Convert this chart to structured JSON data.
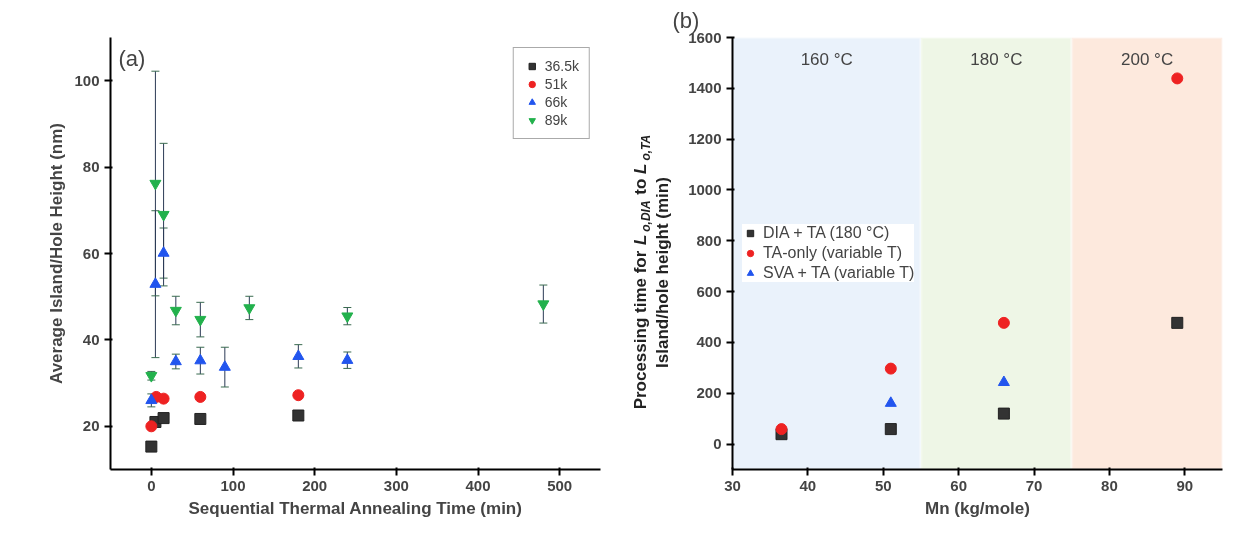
{
  "chart_data": [
    {
      "type": "scatter",
      "annotations": [
        "(a)"
      ],
      "xlabel": "Sequential Thermal Annealing Time (min)",
      "ylabel": "Average Island/Hole Height (nm)",
      "xlim": [
        -50,
        550
      ],
      "xticks": [
        0,
        100,
        200,
        300,
        400,
        500
      ],
      "ylim": [
        10,
        110
      ],
      "yticks": [
        20,
        40,
        60,
        80,
        100
      ],
      "legend": "top right",
      "grid": false,
      "series": [
        {
          "name": "36.5k",
          "color": "#333333",
          "marker": "square",
          "x": [
            0,
            5,
            15,
            60,
            180
          ],
          "values": [
            15.3,
            21,
            21.9,
            21.7,
            22.5
          ]
        },
        {
          "name": "51k",
          "color": "#ee2222",
          "marker": "circle",
          "x": [
            0,
            6,
            15,
            60,
            180
          ],
          "values": [
            20,
            26.8,
            26.4,
            26.8,
            27.2
          ]
        },
        {
          "name": "66k",
          "color": "#2255ee",
          "marker": "triangle",
          "x": [
            0,
            5,
            15,
            30,
            60,
            90,
            180,
            240
          ],
          "values": [
            26,
            52.9,
            60.1,
            35,
            35.2,
            33.7,
            36.2,
            35.3
          ],
          "errors": [
            1.5,
            17,
            5.8,
            1.7,
            3.1,
            4.6,
            2.7,
            1.9
          ]
        },
        {
          "name": "89k",
          "color": "#22b14c",
          "marker": "triangle",
          "x": [
            0,
            5,
            15,
            30,
            60,
            120,
            240,
            480
          ],
          "values": [
            31.7,
            76.2,
            69,
            46.8,
            44.7,
            47.4,
            45.5,
            48.3
          ],
          "errors": [
            1,
            26,
            16.5,
            3.3,
            4,
            2.7,
            2,
            4.4
          ]
        }
      ]
    },
    {
      "type": "scatter",
      "annotations": [
        "(b)"
      ],
      "xlabel": "Mn (kg/mole)",
      "ylabel": "Processing time for L$_{o,DIA}$ to L$_{o,TA}$\nIsland/hole height (min)",
      "xlim": [
        30,
        95
      ],
      "xticks": [
        30,
        40,
        50,
        60,
        70,
        80,
        90
      ],
      "ylim": [
        -100,
        1600
      ],
      "yticks": [
        0,
        200,
        400,
        600,
        800,
        1000,
        1200,
        1400,
        1600
      ],
      "legend": "left",
      "grid": false,
      "bands": [
        {
          "axis": "x",
          "from": 30,
          "to": 55,
          "label": "160 °C",
          "color": "#eaf2fb"
        },
        {
          "axis": "x",
          "from": 55,
          "to": 75,
          "label": "180 °C",
          "color": "#eef6e6"
        },
        {
          "axis": "x",
          "from": 75,
          "to": 95,
          "label": "200 °C",
          "color": "#fde9dd"
        }
      ],
      "series": [
        {
          "name": "DIA + TA (180 °C)",
          "color": "#333333",
          "marker": "square",
          "x": [
            36.5,
            51,
            66,
            89
          ],
          "values": [
            39,
            59,
            120,
            477
          ]
        },
        {
          "name": "TA-only (variable T)",
          "color": "#ee2222",
          "marker": "circle",
          "x": [
            36.5,
            51,
            66,
            89
          ],
          "values": [
            59,
            297,
            477,
            1439
          ]
        },
        {
          "name": "SVA + TA (variable T)",
          "color": "#2255ee",
          "marker": "triangle",
          "x": [
            51,
            66
          ],
          "values": [
            161,
            243
          ]
        }
      ]
    }
  ]
}
